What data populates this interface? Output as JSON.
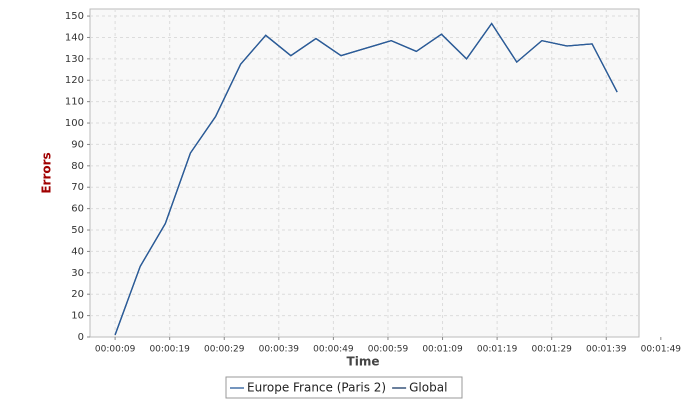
{
  "chart_data": {
    "type": "line",
    "xlabel": "Time",
    "ylabel": "Errors",
    "x": [
      9,
      13.6,
      18.2,
      22.8,
      27.4,
      32,
      36.6,
      41.2,
      45.8,
      50.4,
      55,
      59.6,
      64.2,
      68.8,
      73.4,
      78,
      82.6,
      87.2,
      91.8,
      96.4,
      101
    ],
    "series": [
      {
        "name": "Global",
        "color": "#1a3a66",
        "values": [
          1,
          33,
          53,
          86,
          103,
          127.5,
          141,
          131.5,
          139.5,
          131.5,
          135,
          138.5,
          133.5,
          141.5,
          130,
          146.5,
          128.5,
          138.5,
          136,
          137,
          114.5
        ]
      },
      {
        "name": "Europe France (Paris 2)",
        "color": "#2a5c9a",
        "values": [
          1,
          33,
          53,
          86,
          103,
          127.5,
          141,
          131.5,
          139.5,
          131.5,
          135,
          138.5,
          133.5,
          141.5,
          130,
          146.5,
          128.5,
          138.5,
          136,
          137,
          114.5
        ]
      }
    ],
    "legend_order": [
      1,
      0
    ],
    "xlim": [
      4.4,
      105
    ],
    "ylim": [
      0,
      153.3
    ],
    "xticks": [
      {
        "value": 9,
        "label": "00:00:09"
      },
      {
        "value": 19,
        "label": "00:00:19"
      },
      {
        "value": 29,
        "label": "00:00:29"
      },
      {
        "value": 39,
        "label": "00:00:39"
      },
      {
        "value": 49,
        "label": "00:00:49"
      },
      {
        "value": 59,
        "label": "00:00:59"
      },
      {
        "value": 69,
        "label": "00:01:09"
      },
      {
        "value": 79,
        "label": "00:01:19"
      },
      {
        "value": 89,
        "label": "00:01:29"
      },
      {
        "value": 99,
        "label": "00:01:39"
      },
      {
        "value": 109,
        "label": "00:01:49"
      }
    ],
    "yticks": [
      0,
      10,
      20,
      30,
      40,
      50,
      60,
      70,
      80,
      90,
      100,
      110,
      120,
      130,
      140,
      150
    ],
    "grid": true,
    "legend": "bottom"
  }
}
